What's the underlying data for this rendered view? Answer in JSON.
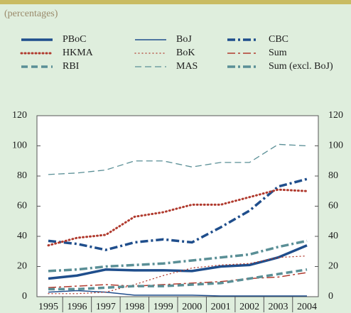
{
  "chart_data": {
    "type": "line",
    "subtitle": "(percentages)",
    "categories": [
      "1995",
      "1996",
      "1997",
      "1998",
      "1999",
      "2000",
      "2001",
      "2002",
      "2003",
      "2004"
    ],
    "ylim": [
      0,
      120
    ],
    "yticks": [
      0,
      20,
      40,
      60,
      80,
      100,
      120
    ],
    "y2lim": [
      0,
      120
    ],
    "y2ticks": [
      0,
      20,
      40,
      60,
      80,
      100,
      120
    ],
    "series": [
      {
        "name": "PBoC",
        "color": "#1f4e8c",
        "style": "solid",
        "width": 3.5,
        "values": [
          12,
          14,
          18,
          17.5,
          17.5,
          17,
          20,
          21,
          26,
          34
        ]
      },
      {
        "name": "BoJ",
        "color": "#1f4e8c",
        "style": "solid",
        "width": 1.5,
        "values": [
          3,
          4,
          3,
          1,
          1,
          1,
          0.5,
          0.5,
          0.5,
          0.5
        ]
      },
      {
        "name": "CBC",
        "color": "#1f4e8c",
        "style": "dashdot",
        "width": 3.5,
        "values": [
          37,
          35,
          31,
          36,
          38,
          36,
          46,
          57,
          73,
          78
        ]
      },
      {
        "name": "HKMA",
        "color": "#b03a2e",
        "style": "dotted",
        "width": 3,
        "values": [
          34,
          39,
          41,
          53,
          56,
          61,
          61,
          66,
          71,
          70
        ]
      },
      {
        "name": "BoK",
        "color": "#b03a2e",
        "style": "dotted",
        "width": 1.3,
        "values": [
          2,
          2,
          3,
          8,
          14,
          19,
          21,
          22,
          26,
          27
        ]
      },
      {
        "name": "Sum",
        "color": "#b03a2e",
        "style": "dashdot",
        "width": 1.5,
        "values": [
          6,
          7,
          8,
          7,
          8,
          9,
          10,
          12,
          13,
          16
        ]
      },
      {
        "name": "RBI",
        "color": "#5a8f96",
        "style": "dashed",
        "width": 3.5,
        "values": [
          5,
          5,
          6,
          7,
          7,
          8,
          9,
          12,
          15,
          18
        ]
      },
      {
        "name": "MAS",
        "color": "#5a8f96",
        "style": "dashed",
        "width": 1.3,
        "values": [
          81,
          82,
          84,
          90,
          90,
          86,
          89,
          89,
          101,
          100
        ]
      },
      {
        "name": "Sum (excl. BoJ)",
        "color": "#5a8f96",
        "style": "dashdot",
        "width": 3.5,
        "values": [
          17,
          18,
          20,
          21,
          22,
          24,
          26,
          28,
          33,
          37
        ]
      }
    ]
  }
}
